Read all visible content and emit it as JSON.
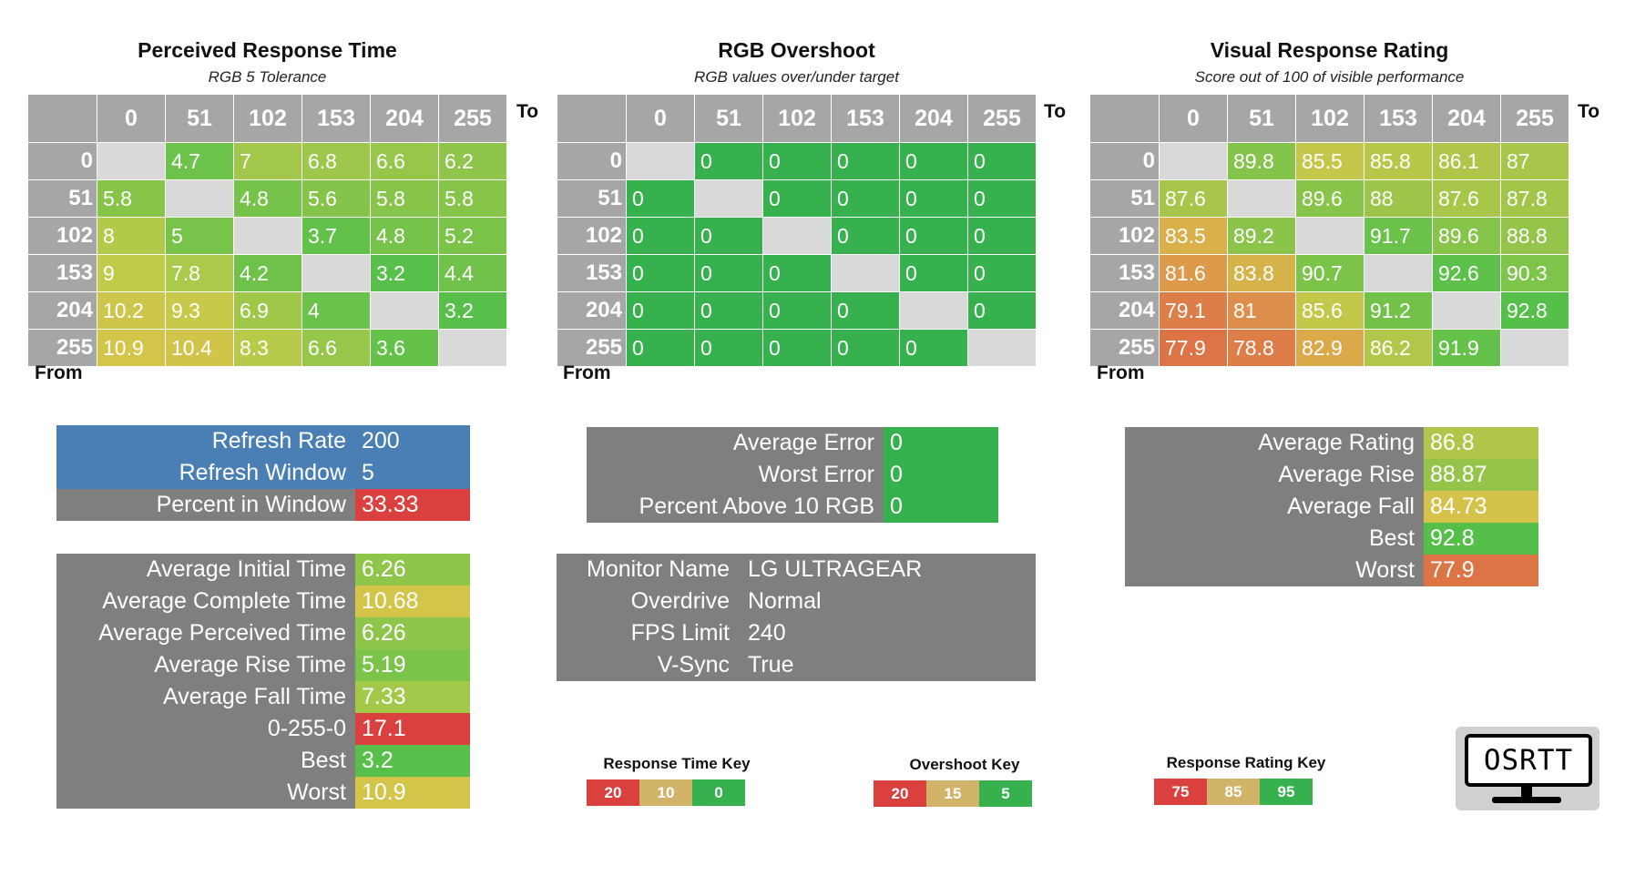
{
  "chart_data": [
    {
      "type": "heatmap",
      "title": "Perceived Response Time",
      "subtitle": "RGB 5 Tolerance",
      "xlabel": "To",
      "ylabel": "From",
      "x": [
        0,
        51,
        102,
        153,
        204,
        255
      ],
      "y": [
        0,
        51,
        102,
        153,
        204,
        255
      ],
      "values": [
        [
          null,
          4.7,
          7,
          6.8,
          6.6,
          6.2
        ],
        [
          5.8,
          null,
          4.8,
          5.6,
          5.8,
          5.8
        ],
        [
          8,
          5,
          null,
          3.7,
          4.8,
          5.2
        ],
        [
          9,
          7.8,
          4.2,
          null,
          3.2,
          4.4
        ],
        [
          10.2,
          9.3,
          6.9,
          4,
          null,
          3.2
        ],
        [
          10.9,
          10.4,
          8.3,
          6.6,
          3.6,
          null
        ]
      ]
    },
    {
      "type": "heatmap",
      "title": "RGB Overshoot",
      "subtitle": "RGB values over/under target",
      "xlabel": "To",
      "ylabel": "From",
      "x": [
        0,
        51,
        102,
        153,
        204,
        255
      ],
      "y": [
        0,
        51,
        102,
        153,
        204,
        255
      ],
      "values": [
        [
          null,
          0,
          0,
          0,
          0,
          0
        ],
        [
          0,
          null,
          0,
          0,
          0,
          0
        ],
        [
          0,
          0,
          null,
          0,
          0,
          0
        ],
        [
          0,
          0,
          0,
          null,
          0,
          0
        ],
        [
          0,
          0,
          0,
          0,
          null,
          0
        ],
        [
          0,
          0,
          0,
          0,
          0,
          null
        ]
      ]
    },
    {
      "type": "heatmap",
      "title": "Visual Response Rating",
      "subtitle": "Score out of 100 of visible performance",
      "xlabel": "To",
      "ylabel": "From",
      "x": [
        0,
        51,
        102,
        153,
        204,
        255
      ],
      "y": [
        0,
        51,
        102,
        153,
        204,
        255
      ],
      "values": [
        [
          null,
          89.8,
          85.5,
          85.8,
          86.1,
          87
        ],
        [
          87.6,
          null,
          89.6,
          88,
          87.6,
          87.8
        ],
        [
          83.5,
          89.2,
          null,
          91.7,
          89.6,
          88.8
        ],
        [
          81.6,
          83.8,
          90.7,
          null,
          92.6,
          90.3
        ],
        [
          79.1,
          81,
          85.6,
          91.2,
          null,
          92.8
        ],
        [
          77.9,
          78.8,
          82.9,
          86.2,
          91.9,
          null
        ]
      ]
    }
  ],
  "cellColors": [
    [
      [
        "",
        "#6cc24a",
        "#a1c84a",
        "#9cc74a",
        "#96c64a",
        "#8ec54a"
      ],
      [
        "#86c44a",
        "",
        "#76c34a",
        "#84c44a",
        "#86c44a",
        "#86c44a"
      ],
      [
        "#b2ca4a",
        "#78c34a",
        "",
        "#62c14a",
        "#76c34a",
        "#7cc34a"
      ],
      [
        "#c0cb4a",
        "#abc94a",
        "#6ec24a",
        "",
        "#58c04a",
        "#70c24a"
      ],
      [
        "#cdc64a",
        "#c8c84a",
        "#9fc84a",
        "#6ac24a",
        "",
        "#58c04a"
      ],
      [
        "#d3c44a",
        "#d0c54a",
        "#b7ca4a",
        "#96c64a",
        "#64c14a",
        ""
      ]
    ],
    [
      [
        "",
        "#36b14e",
        "#36b14e",
        "#36b14e",
        "#36b14e",
        "#36b14e"
      ],
      [
        "#36b14e",
        "",
        "#36b14e",
        "#36b14e",
        "#36b14e",
        "#36b14e"
      ],
      [
        "#36b14e",
        "#36b14e",
        "",
        "#36b14e",
        "#36b14e",
        "#36b14e"
      ],
      [
        "#36b14e",
        "#36b14e",
        "#36b14e",
        "",
        "#36b14e",
        "#36b14e"
      ],
      [
        "#36b14e",
        "#36b14e",
        "#36b14e",
        "#36b14e",
        "",
        "#36b14e"
      ],
      [
        "#36b14e",
        "#36b14e",
        "#36b14e",
        "#36b14e",
        "#36b14e",
        ""
      ]
    ],
    [
      [
        "",
        "#84c44a",
        "#c4c84a",
        "#b8c74a",
        "#b0c64a",
        "#a7c64a"
      ],
      [
        "#a7c64a",
        "",
        "#86c44a",
        "#9cc54a",
        "#a7c64a",
        "#a3c64a"
      ],
      [
        "#d9b04a",
        "#8ac44a",
        "",
        "#6ac24a",
        "#86c44a",
        "#94c54a"
      ],
      [
        "#dc9a4a",
        "#d6b24a",
        "#7cc34a",
        "",
        "#5cc04a",
        "#7ec34a"
      ],
      [
        "#dd7e48",
        "#dd8e4a",
        "#c2c84a",
        "#72c24a",
        "",
        "#56bf4a"
      ],
      [
        "#dd7446",
        "#dd7e48",
        "#d9a94a",
        "#b2c74a",
        "#64c14a",
        ""
      ]
    ]
  ],
  "ui": {
    "to_label": "To",
    "from_label": "From"
  },
  "info": {
    "refresh": [
      {
        "label": "Refresh Rate",
        "value": "200",
        "color": "#4a7fb5"
      },
      {
        "label": "Refresh Window",
        "value": "5",
        "color": "#4a7fb5"
      },
      {
        "label": "Percent in Window",
        "value": "33.33",
        "color": "#d9403e"
      }
    ],
    "times": [
      {
        "label": "Average Initial Time",
        "value": "6.26",
        "color": "#8ec54a"
      },
      {
        "label": "Average Complete Time",
        "value": "10.68",
        "color": "#d3c44a"
      },
      {
        "label": "Average Perceived Time",
        "value": "6.26",
        "color": "#8ec54a"
      },
      {
        "label": "Average Rise Time",
        "value": "5.19",
        "color": "#7cc34a"
      },
      {
        "label": "Average Fall Time",
        "value": "7.33",
        "color": "#a3c84a"
      },
      {
        "label": "0-255-0",
        "value": "17.1",
        "color": "#d9403e"
      },
      {
        "label": "Best",
        "value": "3.2",
        "color": "#58c04a"
      },
      {
        "label": "Worst",
        "value": "10.9",
        "color": "#d3c44a"
      }
    ],
    "overshoot": [
      {
        "label": "Average Error",
        "value": "0",
        "color": "#36b14e"
      },
      {
        "label": "Worst Error",
        "value": "0",
        "color": "#36b14e"
      },
      {
        "label": "Percent Above 10 RGB",
        "value": "0",
        "color": "#36b14e"
      }
    ],
    "monitor": [
      {
        "label": "Monitor Name",
        "value": "LG ULTRAGEAR"
      },
      {
        "label": "Overdrive",
        "value": "Normal"
      },
      {
        "label": "FPS Limit",
        "value": "240"
      },
      {
        "label": "V-Sync",
        "value": "True"
      }
    ],
    "rating": [
      {
        "label": "Average Rating",
        "value": "86.8",
        "color": "#b0c64a"
      },
      {
        "label": "Average Rise",
        "value": "88.87",
        "color": "#94c54a"
      },
      {
        "label": "Average Fall",
        "value": "84.73",
        "color": "#d4c24a"
      },
      {
        "label": "Best",
        "value": "92.8",
        "color": "#56bf4a"
      },
      {
        "label": "Worst",
        "value": "77.9",
        "color": "#dd7446"
      }
    ]
  },
  "keys": [
    {
      "title": "Response Time Key",
      "items": [
        {
          "label": "20",
          "color": "#d9403e"
        },
        {
          "label": "10",
          "color": "#d1b36a"
        },
        {
          "label": "0",
          "color": "#36b14e"
        }
      ]
    },
    {
      "title": "Overshoot Key",
      "items": [
        {
          "label": "20",
          "color": "#d9403e"
        },
        {
          "label": "15",
          "color": "#d1b36a"
        },
        {
          "label": "5",
          "color": "#36b14e"
        }
      ]
    },
    {
      "title": "Response Rating Key",
      "items": [
        {
          "label": "75",
          "color": "#d9403e"
        },
        {
          "label": "85",
          "color": "#d1b36a"
        },
        {
          "label": "95",
          "color": "#36b14e"
        }
      ]
    }
  ],
  "logo": {
    "text": "OSRTT"
  }
}
